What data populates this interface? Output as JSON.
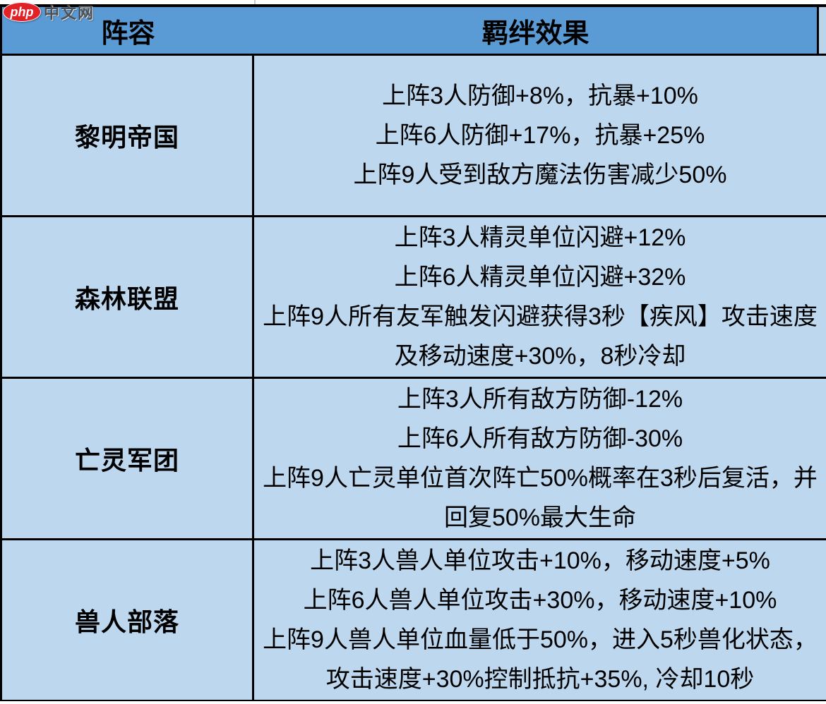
{
  "watermark": {
    "logo_text": "php",
    "site_text": "中文网"
  },
  "table": {
    "headers": {
      "lineup": "阵容",
      "bond_effect": "羁绊效果"
    },
    "rows": [
      {
        "faction": "黎明帝国",
        "effects": [
          "上阵3人防御+8%，抗暴+10%",
          "上阵6人防御+17%，抗暴+25%",
          "上阵9人受到敌方魔法伤害减少50%"
        ]
      },
      {
        "faction": "森林联盟",
        "effects": [
          "上阵3人精灵单位闪避+12%",
          "上阵6人精灵单位闪避+32%",
          "上阵9人所有友军触发闪避获得3秒【疾风】攻击速度及移动速度+30%，8秒冷却"
        ]
      },
      {
        "faction": "亡灵军团",
        "effects": [
          "上阵3人所有敌方防御-12%",
          "上阵6人所有敌方防御-30%",
          "上阵9人亡灵单位首次阵亡50%概率在3秒后复活，并回复50%最大生命"
        ]
      },
      {
        "faction": "兽人部落",
        "effects": [
          "上阵3人兽人单位攻击+10%，移动速度+5%",
          "上阵6人兽人单位攻击+30%，移动速度+10%",
          "上阵9人兽人单位血量低于50%，进入5秒兽化状态，攻击速度+30%控制抵抗+35%, 冷却10秒"
        ]
      }
    ]
  },
  "colors": {
    "header_bg": "#5b9bd5",
    "row_bg": "#bdd7ee",
    "border": "#000000",
    "logo_red": "#e32228"
  }
}
